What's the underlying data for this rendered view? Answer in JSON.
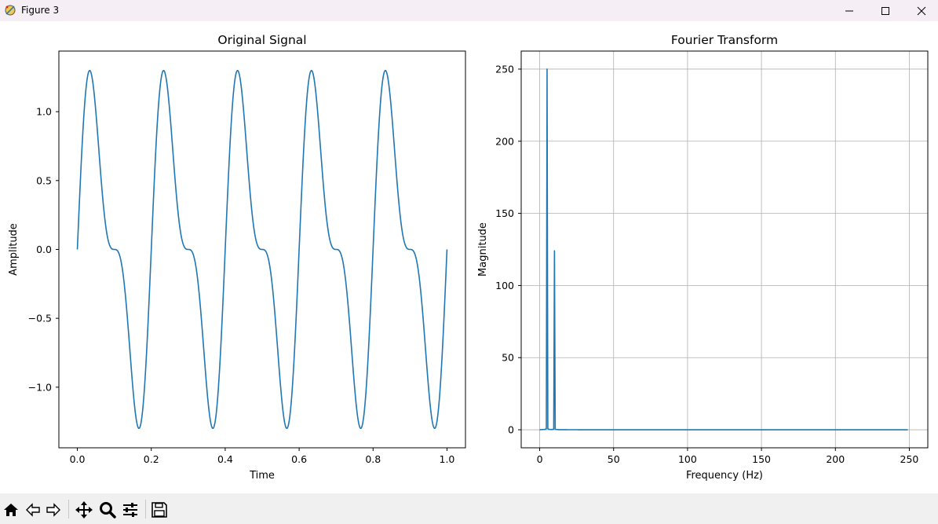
{
  "window": {
    "title": "Figure 3",
    "controls": [
      "minimize-icon",
      "maximize-icon",
      "close-icon"
    ]
  },
  "toolbar": {
    "buttons": [
      "home-icon",
      "back-icon",
      "forward-icon",
      "pan-icon",
      "zoom-icon",
      "configure-subplots-icon",
      "save-icon"
    ]
  },
  "colors": {
    "line": "#1f77b4",
    "grid": "#b0b0b0",
    "titlebar": "#f5eef4",
    "toolbar": "#f0f0f0"
  },
  "chart_data": [
    {
      "type": "line",
      "title": "Original Signal",
      "xlabel": "Time",
      "ylabel": "Amplitude",
      "xlim": [
        -0.05,
        1.05
      ],
      "ylim": [
        -1.44,
        1.44
      ],
      "xticks": [
        0.0,
        0.2,
        0.4,
        0.6,
        0.8,
        1.0
      ],
      "xtick_labels": [
        "0.0",
        "0.2",
        "0.4",
        "0.6",
        "0.8",
        "1.0"
      ],
      "yticks": [
        -1.0,
        -0.5,
        0.0,
        0.5,
        1.0
      ],
      "ytick_labels": [
        "−1.0",
        "−0.5",
        "0.0",
        "0.5",
        "1.0"
      ],
      "grid": false,
      "series": [
        {
          "function": "sin(2π·5·t) + 0.5·sin(2π·10·t)",
          "x_range": [
            0,
            1
          ],
          "peak": 1.3,
          "trough": -1.3
        }
      ]
    },
    {
      "type": "line",
      "title": "Fourier Transform",
      "xlabel": "Frequency (Hz)",
      "ylabel": "Magnitude",
      "xlim": [
        -12.5,
        262.5
      ],
      "ylim": [
        -12.5,
        262.5
      ],
      "xticks": [
        0,
        50,
        100,
        150,
        200,
        250
      ],
      "xtick_labels": [
        "0",
        "50",
        "100",
        "150",
        "200",
        "250"
      ],
      "yticks": [
        0,
        50,
        100,
        150,
        200,
        250
      ],
      "ytick_labels": [
        "0",
        "50",
        "100",
        "150",
        "200",
        "250"
      ],
      "grid": true,
      "series": [
        {
          "peaks": [
            {
              "frequency": 5,
              "magnitude": 250
            },
            {
              "frequency": 10,
              "magnitude": 124
            }
          ],
          "x_range": [
            0,
            249
          ],
          "baseline": 0
        }
      ]
    }
  ]
}
